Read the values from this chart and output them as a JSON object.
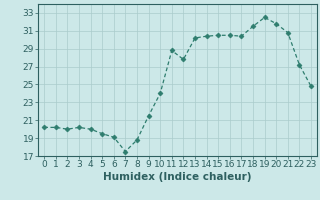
{
  "x": [
    0,
    1,
    2,
    3,
    4,
    5,
    6,
    7,
    8,
    9,
    10,
    11,
    12,
    13,
    14,
    15,
    16,
    17,
    18,
    19,
    20,
    21,
    22,
    23
  ],
  "y": [
    20.2,
    20.2,
    20.0,
    20.2,
    20.0,
    19.5,
    19.1,
    17.5,
    18.8,
    21.5,
    24.0,
    28.8,
    27.8,
    30.2,
    30.4,
    30.5,
    30.5,
    30.4,
    31.5,
    32.5,
    31.8,
    30.8,
    27.2,
    24.8
  ],
  "line_color": "#2e7d6e",
  "marker": "D",
  "marker_size": 2.5,
  "bg_color": "#cce8e8",
  "grid_color": "#aacccc",
  "xlabel": "Humidex (Indice chaleur)",
  "ylim": [
    17,
    34
  ],
  "yticks": [
    17,
    19,
    21,
    23,
    25,
    27,
    29,
    31,
    33
  ],
  "xlim": [
    -0.5,
    23.5
  ],
  "xticks": [
    0,
    1,
    2,
    3,
    4,
    5,
    6,
    7,
    8,
    9,
    10,
    11,
    12,
    13,
    14,
    15,
    16,
    17,
    18,
    19,
    20,
    21,
    22,
    23
  ],
  "tick_color": "#2e6060",
  "label_color": "#2e6060",
  "font_size": 6.5,
  "xlabel_fontsize": 7.5
}
